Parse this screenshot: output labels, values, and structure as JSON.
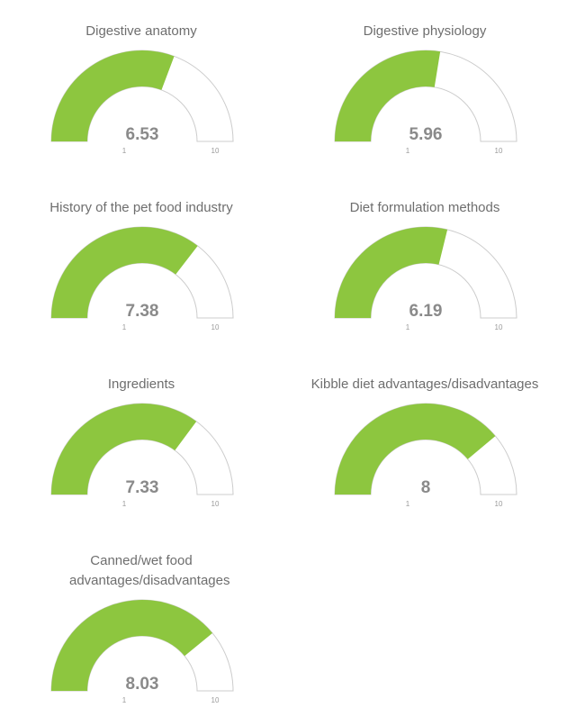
{
  "colors": {
    "fill": "#8dc63f",
    "track": "#ffffff",
    "stroke": "#cccccc"
  },
  "chart_data": [
    {
      "type": "gauge",
      "title": "Digestive anatomy",
      "value": 6.53,
      "value_label": "6.53",
      "min": 1,
      "max": 10,
      "min_label": "1",
      "max_label": "10"
    },
    {
      "type": "gauge",
      "title": "Digestive physiology",
      "value": 5.96,
      "value_label": "5.96",
      "min": 1,
      "max": 10,
      "min_label": "1",
      "max_label": "10"
    },
    {
      "type": "gauge",
      "title": "History of the pet food industry",
      "value": 7.38,
      "value_label": "7.38",
      "min": 1,
      "max": 10,
      "min_label": "1",
      "max_label": "10"
    },
    {
      "type": "gauge",
      "title": "Diet formulation methods",
      "value": 6.19,
      "value_label": "6.19",
      "min": 1,
      "max": 10,
      "min_label": "1",
      "max_label": "10"
    },
    {
      "type": "gauge",
      "title": "Ingredients",
      "value": 7.33,
      "value_label": "7.33",
      "min": 1,
      "max": 10,
      "min_label": "1",
      "max_label": "10"
    },
    {
      "type": "gauge",
      "title": "Kibble diet advantages/disadvantages",
      "value": 8,
      "value_label": "8",
      "min": 1,
      "max": 10,
      "min_label": "1",
      "max_label": "10"
    },
    {
      "type": "gauge",
      "title": "Canned/wet food advantages/disadvantages",
      "value": 8.03,
      "value_label": "8.03",
      "min": 1,
      "max": 10,
      "min_label": "1",
      "max_label": "10"
    }
  ]
}
